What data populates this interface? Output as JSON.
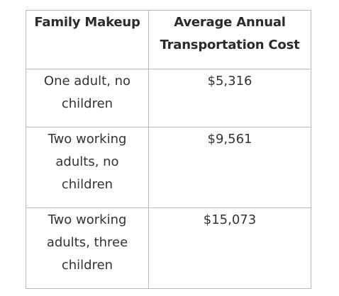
{
  "table": {
    "headers": {
      "family": "Family Makeup",
      "cost_line1": "Average Annual",
      "cost_line2": "Transportation Cost"
    },
    "rows": [
      {
        "family_lines": [
          "One adult, no",
          "children"
        ],
        "cost": "$5,316"
      },
      {
        "family_lines": [
          "Two working",
          "adults, no",
          "children"
        ],
        "cost": "$9,561"
      },
      {
        "family_lines": [
          "Two working",
          "adults, three",
          "children"
        ],
        "cost": "$15,073"
      }
    ]
  }
}
